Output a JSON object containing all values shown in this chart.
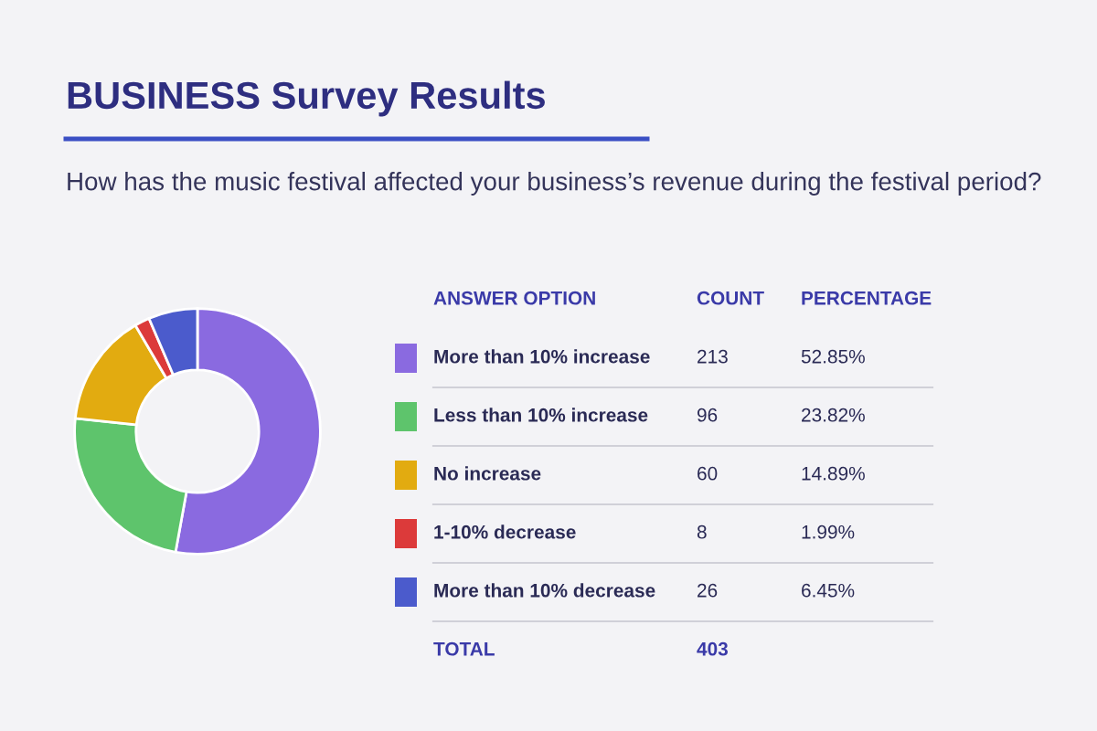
{
  "chart_data": {
    "type": "donut",
    "title": "BUSINESS Survey Results",
    "subtitle": "How has the music festival affected your business’s revenue during the festival period?",
    "legend_title": "ANSWER OPTION",
    "categories": [
      "More than 10% increase",
      "Less than 10% increase",
      "No increase",
      "1-10% decrease",
      "More than 10% decrease"
    ],
    "values": [
      213,
      96,
      60,
      8,
      26
    ],
    "colors": [
      "#8a6ae0",
      "#5ec46c",
      "#e2ab10",
      "#dc3a3a",
      "#4b5bcc"
    ],
    "data_labels": true,
    "annotations": [
      "COUNT",
      "PERCENTAGE",
      "TOTAL",
      "52.85%",
      "23.82%",
      "14.89%",
      "1.99%",
      "6.45%"
    ],
    "totals": [
      "403"
    ],
    "legend": "right"
  }
}
